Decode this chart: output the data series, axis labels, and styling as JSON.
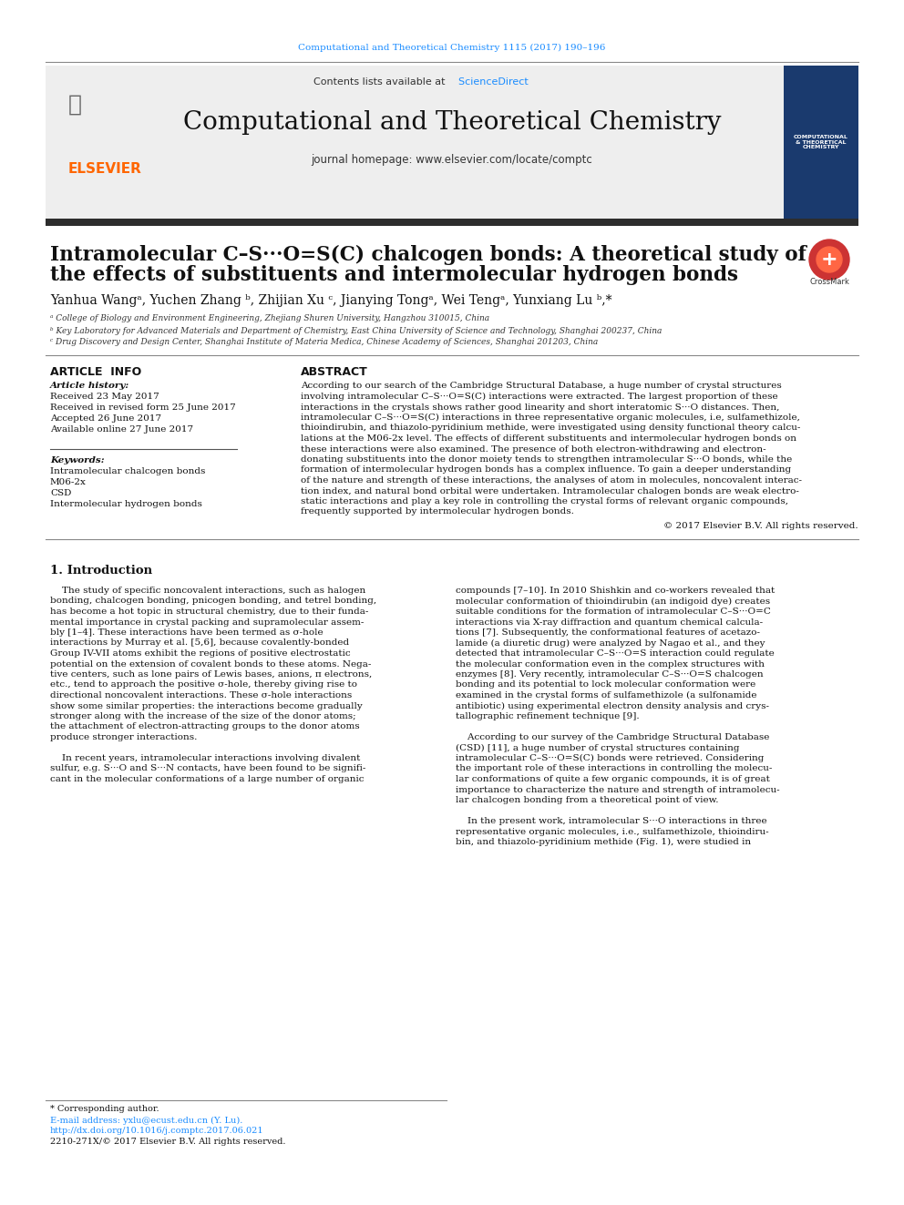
{
  "journal_citation": "Computational and Theoretical Chemistry 1115 (2017) 190–196",
  "journal_name": "Computational and Theoretical Chemistry",
  "contents_text": "Contents lists available at",
  "sciencedirect_text": "ScienceDirect",
  "journal_homepage": "journal homepage: www.elsevier.com/locate/comptc",
  "title": "Intramolecular C–S···O=S(C) chalcogen bonds: A theoretical study of\nthe effects of substituents and intermolecular hydrogen bonds",
  "authors": "Yanhua Wangᵃ, Yuchen Zhang ᵇ, Zhijian Xu ᶜ, Jianying Tongᵃ, Wei Tengᵃ, Yunxiang Lu ᵇ,*",
  "affil_a": "ᵃ College of Biology and Environment Engineering, Zhejiang Shuren University, Hangzhou 310015, China",
  "affil_b": "ᵇ Key Laboratory for Advanced Materials and Department of Chemistry, East China University of Science and Technology, Shanghai 200237, China",
  "affil_c": "ᶜ Drug Discovery and Design Center, Shanghai Institute of Materia Medica, Chinese Academy of Sciences, Shanghai 201203, China",
  "article_info_header": "ARTICLE  INFO",
  "abstract_header": "ABSTRACT",
  "article_history_label": "Article history:",
  "received": "Received 23 May 2017",
  "received_revised": "Received in revised form 25 June 2017",
  "accepted": "Accepted 26 June 2017",
  "available": "Available online 27 June 2017",
  "keywords_label": "Keywords:",
  "keywords": [
    "Intramolecular chalcogen bonds",
    "M06-2x",
    "CSD",
    "Intermolecular hydrogen bonds"
  ],
  "abstract_text": "According to our search of the Cambridge Structural Database, a huge number of crystal structures involving intramolecular C–S···O=S(C) interactions were extracted. The largest proportion of these interactions in the crystals shows rather good linearity and short interatomic S···O distances. Then, intramolecular C–S···O=S(C) interactions in three representative organic molecules, i.e, sulfamethizole, thioindirubin, and thiazolo-pyridinium methide, were investigated using density functional theory calculations at the M06-2x level. The effects of different substituents and intermolecular hydrogen bonds on these interactions were also examined. The presence of both electron-withdrawing and electron-donating substituents into the donor moiety tends to strengthen intramolecular S···O bonds, while the formation of intermolecular hydrogen bonds has a complex influence. To gain a deeper understanding of the nature and strength of these interactions, the analyses of atom in molecules, noncovalent interaction index, and natural bond orbital were undertaken. Intramolecular chalogen bonds are weak electrostatic interactions and play a key role in controlling the crystal forms of relevant organic compounds, frequently supported by intermolecular hydrogen bonds.",
  "copyright": "© 2017 Elsevier B.V. All rights reserved.",
  "intro_header": "1. Introduction",
  "intro_col1": "The study of specific noncovalent interactions, such as halogen bonding, chalcogen bonding, pnicogen bonding, and tetrel bonding, has become a hot topic in structural chemistry, due to their fundamental importance in crystal packing and supramolecular assembly [1–4]. These interactions have been termed as σ-hole interactions by Murray et al. [5,6], because covalently-bonded Group IV-VII atoms exhibit the regions of positive electrostatic potential on the extension of covalent bonds to these atoms. Negative centers, such as lone pairs of Lewis bases, anions, π electrons, etc., tend to approach the positive σ-hole, thereby giving rise to directional noncovalent interactions. These σ-hole interactions show some similar properties: the interactions become gradually stronger along with the increase of the size of the donor atoms; the attachment of electron-attracting groups to the donor atoms produce stronger interactions.\n\nIn recent years, intramolecular interactions involving divalent sulfur, e.g. S···O and S···N contacts, have been found to be significant in the molecular conformations of a large number of organic",
  "intro_col2": "compounds [7–10]. In 2010 Shishkin and co-workers revealed that molecular conformation of thioindirubin (an indigoid dye) creates suitable conditions for the formation of intramolecular C–S···O=C interactions via X-ray diffraction and quantum chemical calculations [7]. Subsequently, the conformational features of acetazolamide (a diuretic drug) were analyzed by Nagao et al., and they detected that intramolecular C–S···O=S interaction could regulate the molecular conformation even in the complex structures with enzymes [8]. Very recently, intramolecular C–S···O=S chalcogen bonding and its potential to lock molecular conformation were examined in the crystal forms of sulfamethizole (a sulfonamide antibiotic) using experimental electron density analysis and crystallographic refinement technique [9].\n\nAccording to our survey of the Cambridge Structural Database (CSD) [11], a huge number of crystal structures containing intramolecular C–S···O=S(C) bonds were retrieved. Considering the important role of these interactions in controlling the molecular conformations of quite a few organic compounds, it is of great importance to characterize the nature and strength of intramolecular chalcogen bonding from a theoretical point of view.\n\nIn the present work, intramolecular S···O interactions in three representative organic molecules, i.e., sulfamethizole, thioindirubin, and thiazolo-pyridinium methide (Fig. 1), were studied in",
  "footnote_corresponding": "* Corresponding author.",
  "footnote_email": "E-mail address: yxlu@ecust.edu.cn (Y. Lu).",
  "footnote_doi": "http://dx.doi.org/10.1016/j.comptc.2017.06.021",
  "footnote_issn": "2210-271X/© 2017 Elsevier B.V. All rights reserved.",
  "bg_color": "#ffffff",
  "header_gray": "#f0f0f0",
  "elsevier_orange": "#FF6600",
  "link_color": "#1a8cff",
  "title_color": "#000000",
  "text_color": "#000000",
  "header_bar_color": "#2d2d2d",
  "citation_color": "#1a8cff"
}
